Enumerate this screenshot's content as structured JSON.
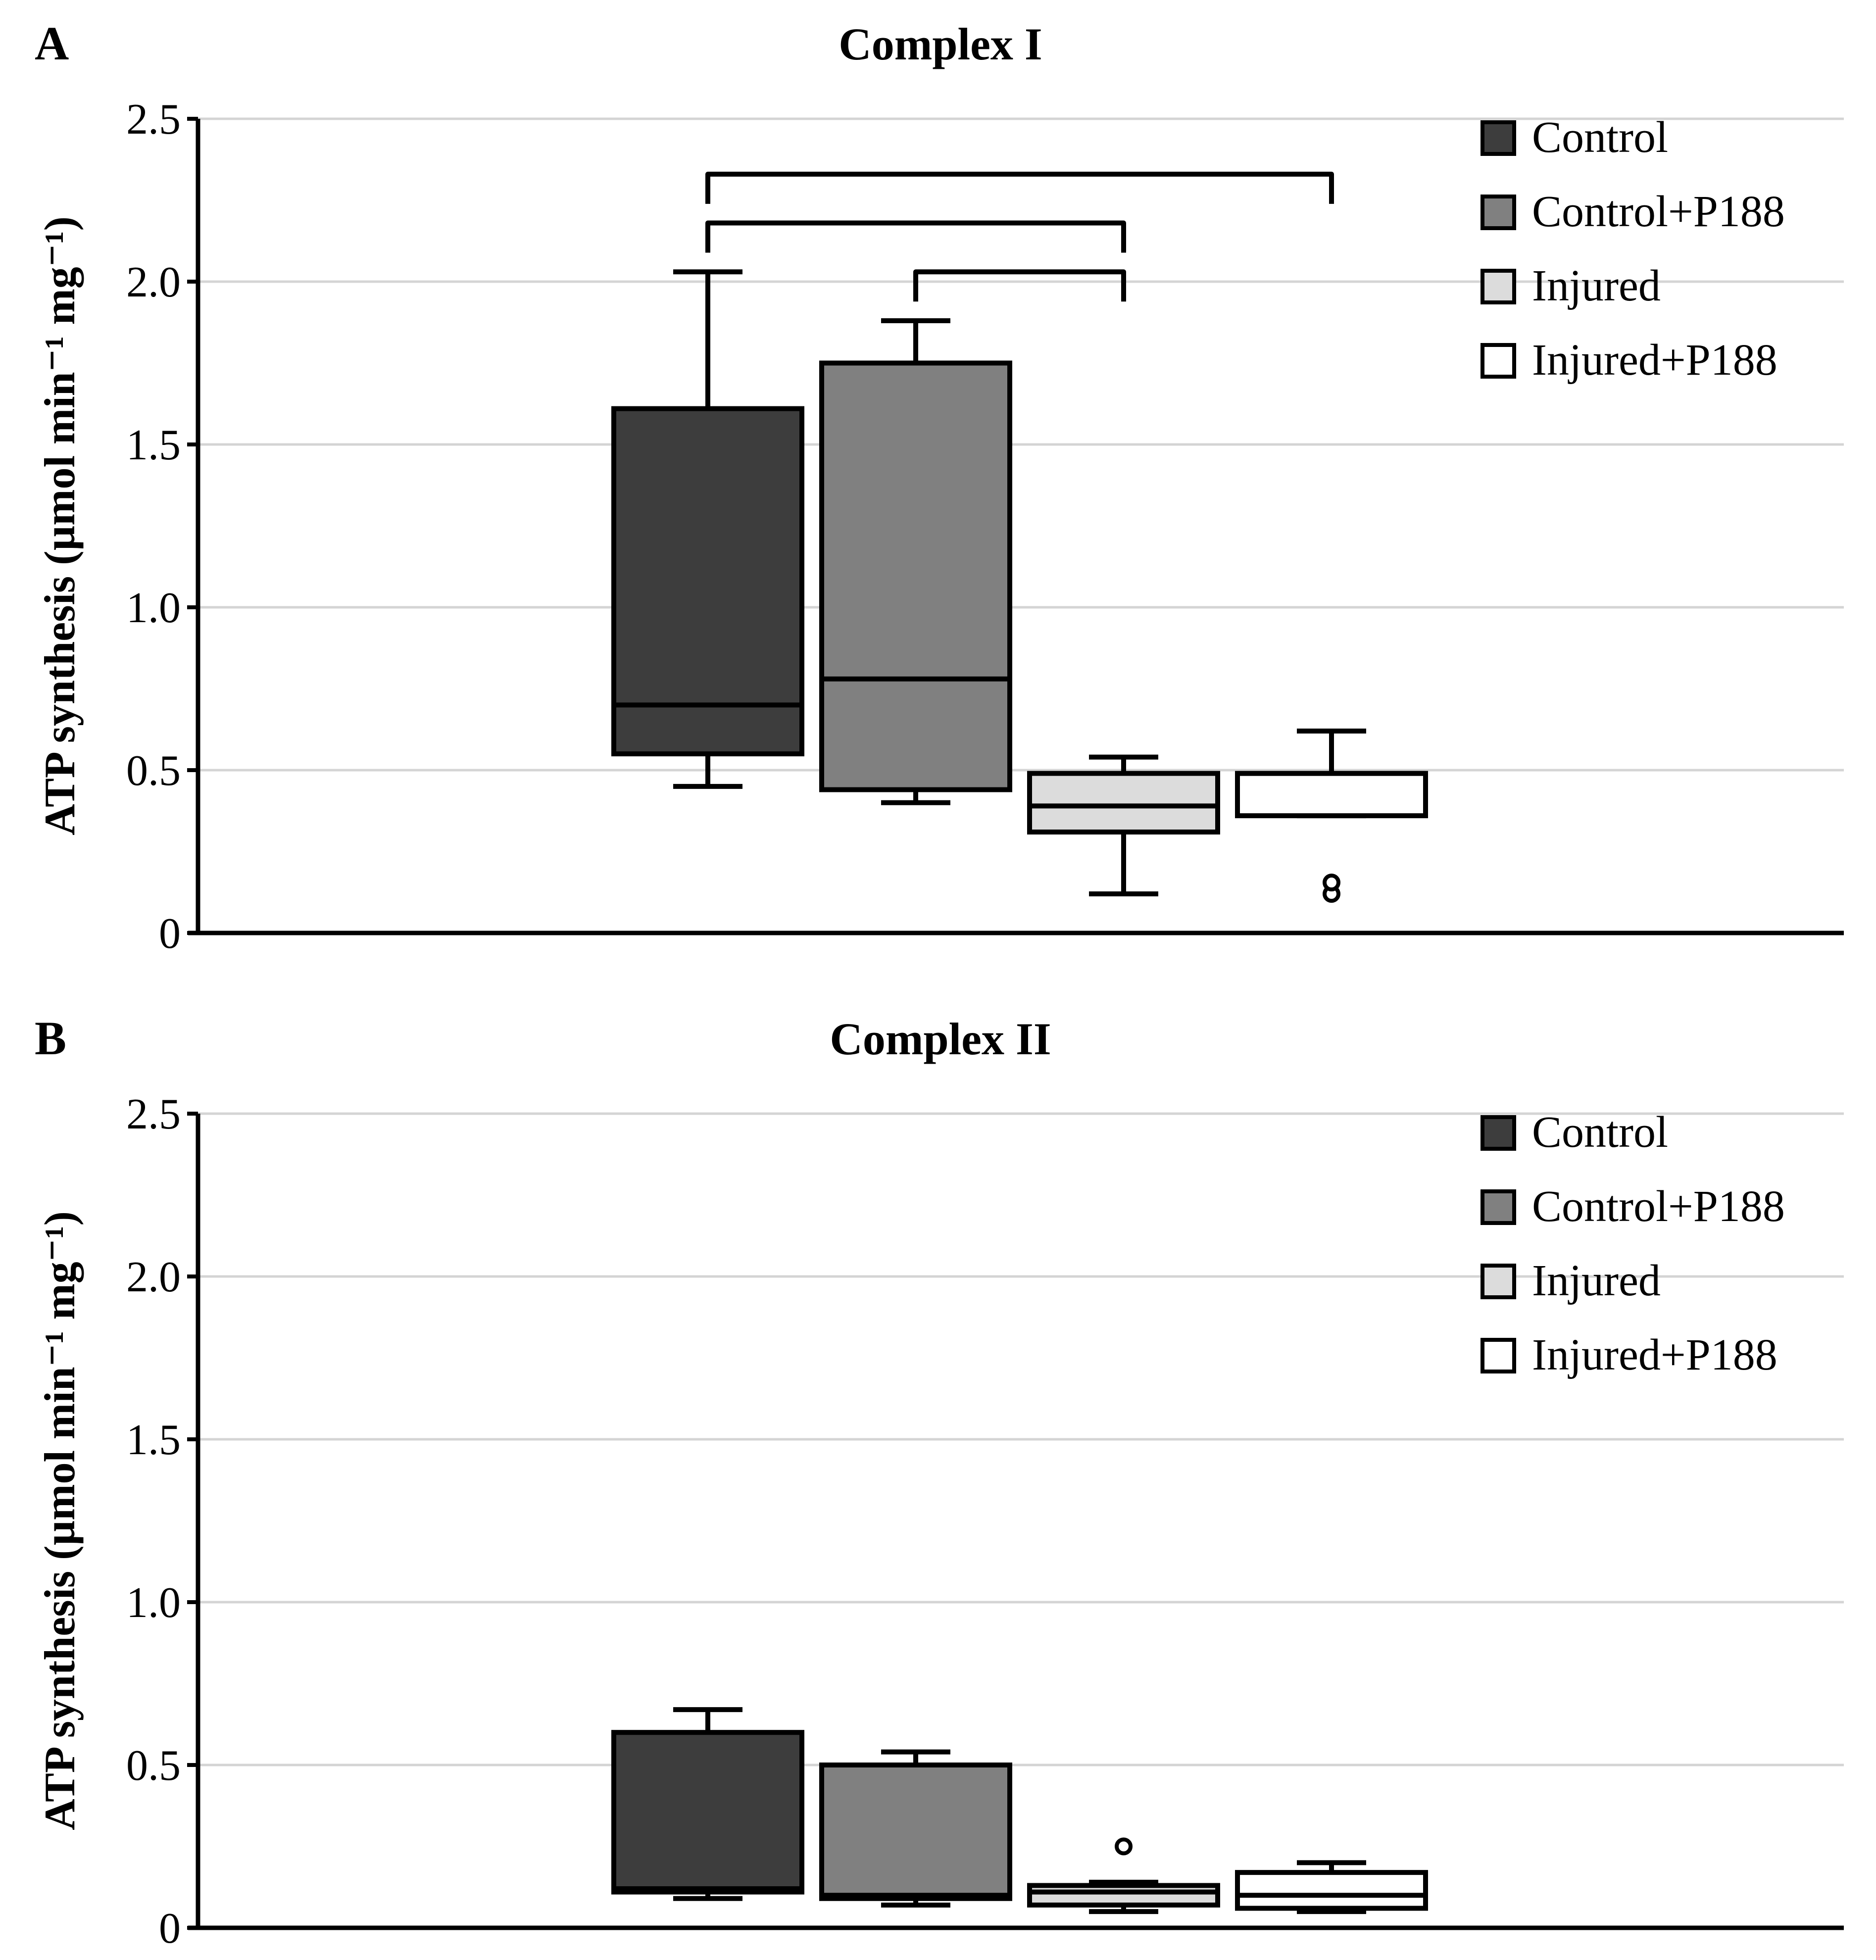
{
  "legend": {
    "entries": [
      {
        "label": "Control",
        "color": "#3d3d3d"
      },
      {
        "label": "Control+P188",
        "color": "#808080"
      },
      {
        "label": "Injured",
        "color": "#dcdcdc"
      },
      {
        "label": "Injured+P188",
        "color": "#ffffff"
      }
    ]
  },
  "chart_data": [
    {
      "type": "box",
      "panel": "A",
      "title": "Complex I",
      "ylabel": "ATP synthesis (µmol min⁻¹ mg⁻¹)",
      "ylim": [
        0,
        2.5
      ],
      "yticks": [
        0,
        0.5,
        1.0,
        1.5,
        2.0,
        2.5
      ],
      "ytick_labels": [
        "0",
        "0.5",
        "1.0",
        "1.5",
        "2.0",
        "2.5"
      ],
      "grid": true,
      "legend_position": "top-right",
      "groups": [
        {
          "name": "Control",
          "whisker_low": 0.45,
          "q1": 0.55,
          "median": 0.7,
          "q3": 1.61,
          "whisker_high": 2.03,
          "outliers": []
        },
        {
          "name": "Control+P188",
          "whisker_low": 0.4,
          "q1": 0.44,
          "median": 0.78,
          "q3": 1.75,
          "whisker_high": 1.88,
          "outliers": []
        },
        {
          "name": "Injured",
          "whisker_low": 0.12,
          "q1": 0.31,
          "median": 0.39,
          "q3": 0.49,
          "whisker_high": 0.54,
          "outliers": []
        },
        {
          "name": "Injured+P188",
          "whisker_low": 0.36,
          "q1": 0.36,
          "median": 0.49,
          "q3": 0.49,
          "whisker_high": 0.62,
          "outliers": [
            0.12,
            0.155
          ]
        }
      ],
      "significance_brackets": [
        {
          "from": "Control",
          "to": "Injured+P188",
          "level": 2.33
        },
        {
          "from": "Control",
          "to": "Injured",
          "level": 2.18
        },
        {
          "from": "Control+P188",
          "to": "Injured",
          "level": 2.03
        }
      ]
    },
    {
      "type": "box",
      "panel": "B",
      "title": "Complex II",
      "ylabel": "ATP synthesis (µmol min⁻¹ mg⁻¹)",
      "ylim": [
        0,
        2.5
      ],
      "yticks": [
        0,
        0.5,
        1.0,
        1.5,
        2.0,
        2.5
      ],
      "ytick_labels": [
        "0",
        "0.5",
        "1.0",
        "1.5",
        "2.0",
        "2.5"
      ],
      "grid": true,
      "legend_position": "top-right",
      "groups": [
        {
          "name": "Control",
          "whisker_low": 0.09,
          "q1": 0.11,
          "median": 0.12,
          "q3": 0.6,
          "whisker_high": 0.67,
          "outliers": []
        },
        {
          "name": "Control+P188",
          "whisker_low": 0.07,
          "q1": 0.09,
          "median": 0.1,
          "q3": 0.5,
          "whisker_high": 0.54,
          "outliers": []
        },
        {
          "name": "Injured",
          "whisker_low": 0.05,
          "q1": 0.07,
          "median": 0.11,
          "q3": 0.13,
          "whisker_high": 0.14,
          "outliers": [
            0.25
          ]
        },
        {
          "name": "Injured+P188",
          "whisker_low": 0.05,
          "q1": 0.06,
          "median": 0.1,
          "q3": 0.17,
          "whisker_high": 0.2,
          "outliers": []
        }
      ],
      "significance_brackets": []
    }
  ]
}
